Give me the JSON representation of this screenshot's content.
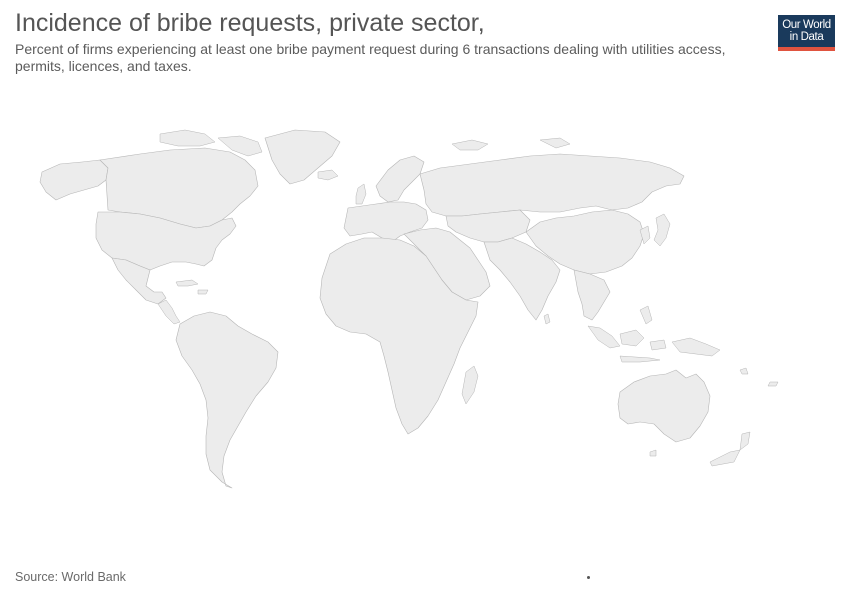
{
  "title": "Incidence of bribe requests, private sector,",
  "subtitle": "Percent of firms experiencing at least one bribe payment request during 6 transactions dealing with utilities access, permits, licences, and taxes.",
  "logo": {
    "line1": "Our World",
    "line2": "in Data",
    "bg_color": "#1a3a5c",
    "accent_color": "#e0533f"
  },
  "map": {
    "fill_color": "#ececec",
    "border_color": "#b6b6b6",
    "data_status": "no data shown"
  },
  "source": "Source: World Bank"
}
